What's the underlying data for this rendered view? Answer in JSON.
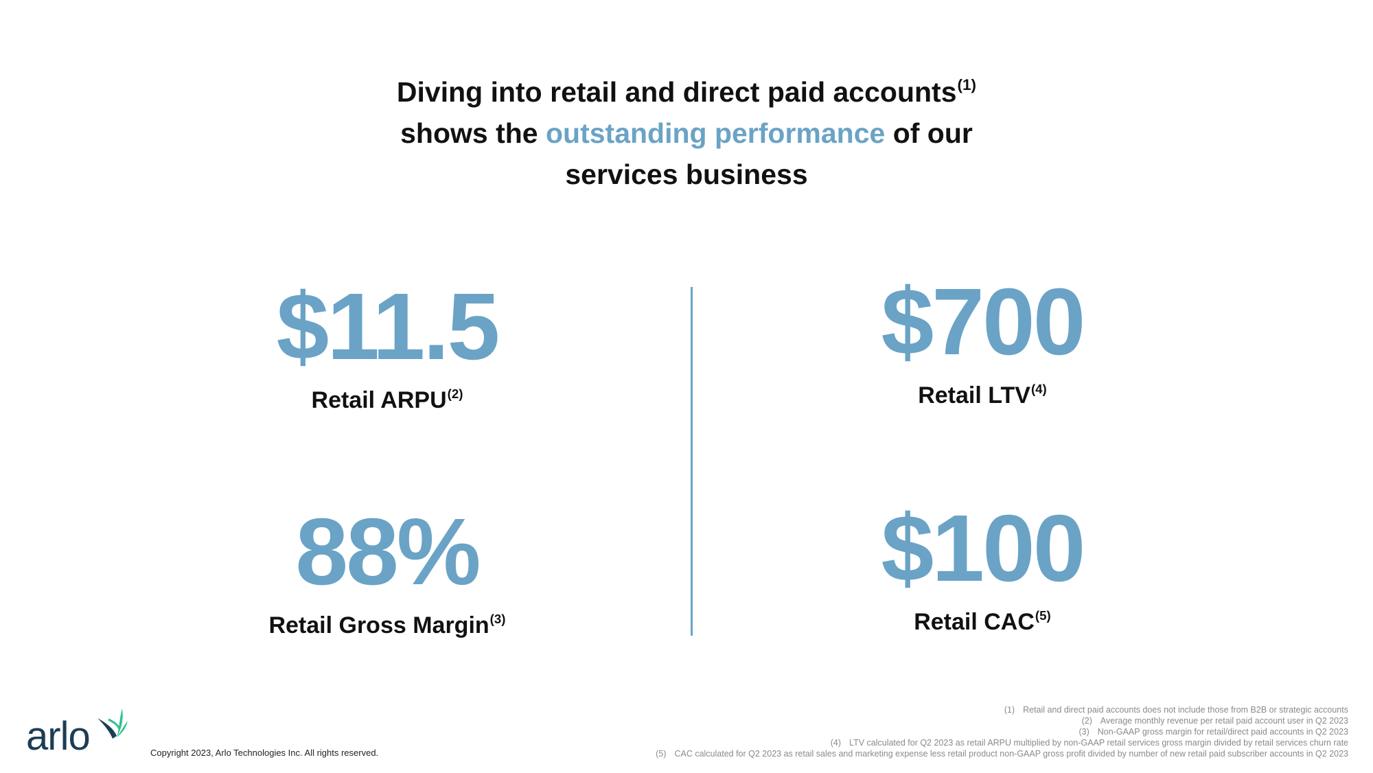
{
  "headline": {
    "line1_text": "Diving into retail and direct paid accounts",
    "line1_note": "(1)",
    "line2_pre": "shows the ",
    "line2_accent": "outstanding performance",
    "line2_post": " of our",
    "line3": "services business"
  },
  "metrics": {
    "arpu": {
      "value": "$11.5",
      "label": "Retail ARPU",
      "note": "(2)"
    },
    "margin": {
      "value": "88%",
      "label": "Retail Gross Margin",
      "note": "(3)"
    },
    "ltv": {
      "value": "$700",
      "label": "Retail LTV",
      "note": "(4)"
    },
    "cac": {
      "value": "$100",
      "label": "Retail CAC",
      "note": "(5)"
    }
  },
  "footer": {
    "logo_text": "arlo",
    "copyright": "Copyright 2023, Arlo Technologies Inc. All rights reserved.",
    "footnotes": [
      {
        "num": "(1)",
        "text": "Retail and direct paid accounts does not include those from B2B or strategic accounts"
      },
      {
        "num": "(2)",
        "text": "Average monthly revenue per retail paid account user in Q2 2023"
      },
      {
        "num": "(3)",
        "text": "Non-GAAP gross margin for retail/direct paid accounts in Q2 2023"
      },
      {
        "num": "(4)",
        "text": "LTV calculated for Q2 2023 as retail ARPU multiplied by non-GAAP retail services gross margin divided by retail services churn rate"
      },
      {
        "num": "(5)",
        "text": "CAC calculated for Q2 2023 as retail sales and marketing expense less retail product non-GAAP gross profit divided by number of new retail paid subscriber accounts in Q2 2023"
      }
    ]
  },
  "colors": {
    "accent": "#6aa3c6",
    "text": "#111111",
    "logo_dark": "#1d3d55",
    "logo_green": "#2fbf8f"
  },
  "icons": {
    "logo": "arlo-bird-logo"
  }
}
